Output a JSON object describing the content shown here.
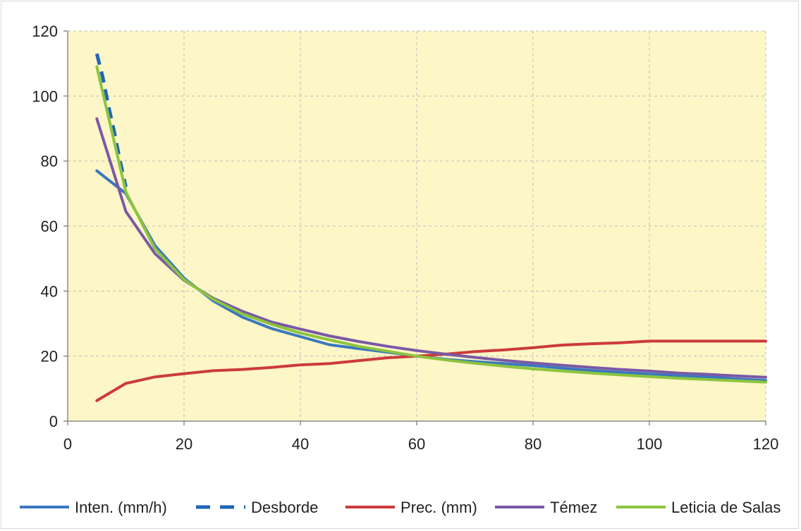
{
  "chart_data": {
    "type": "line",
    "title": "",
    "xlabel": "",
    "ylabel": "",
    "xlim": [
      0,
      120
    ],
    "ylim": [
      0,
      120
    ],
    "xticks": [
      0,
      20,
      40,
      60,
      80,
      100,
      120
    ],
    "yticks": [
      0,
      20,
      40,
      60,
      80,
      100,
      120
    ],
    "grid": true,
    "plot_background": "#fdf6c6",
    "legend_position": "bottom",
    "series": [
      {
        "name": "Inten. (mm/h)",
        "color": "#3a78bf",
        "dashed": false,
        "x": [
          5,
          10,
          15,
          20,
          25,
          30,
          35,
          40,
          45,
          50,
          55,
          60,
          65,
          70,
          75,
          80,
          85,
          90,
          95,
          100,
          105,
          110,
          115,
          120
        ],
        "y": [
          77,
          70,
          54,
          44,
          37,
          32,
          28.5,
          26,
          23.5,
          22.3,
          21.2,
          20,
          19,
          18.3,
          17.7,
          17.1,
          16.3,
          15.6,
          15,
          14.5,
          14,
          13.6,
          13,
          12.5
        ]
      },
      {
        "name": "Desborde",
        "color": "#1f66b5",
        "dashed": true,
        "x": [
          5,
          6,
          7,
          8,
          9,
          10
        ],
        "y": [
          113,
          106,
          97,
          89,
          80,
          72
        ]
      },
      {
        "name": "Prec. (mm)",
        "color": "#cc3b3b",
        "dashed": false,
        "x": [
          5,
          10,
          15,
          20,
          25,
          30,
          35,
          40,
          45,
          50,
          55,
          60,
          65,
          70,
          75,
          80,
          85,
          90,
          95,
          100,
          105,
          110,
          115,
          120
        ],
        "y": [
          6.3,
          11.6,
          13.6,
          14.6,
          15.5,
          15.9,
          16.5,
          17.3,
          17.7,
          18.6,
          19.5,
          20,
          20.6,
          21.4,
          21.9,
          22.6,
          23.4,
          23.8,
          24.1,
          24.6,
          24.6,
          24.6,
          24.6,
          24.6
        ]
      },
      {
        "name": "Témez",
        "color": "#7b58a6",
        "dashed": false,
        "x": [
          5,
          10,
          15,
          20,
          25,
          30,
          35,
          40,
          45,
          50,
          55,
          60,
          65,
          70,
          75,
          80,
          85,
          90,
          95,
          100,
          105,
          110,
          115,
          120
        ],
        "y": [
          93,
          64.5,
          51.5,
          43.3,
          37.8,
          33.8,
          30.5,
          28.3,
          26.2,
          24.5,
          23,
          21.7,
          20.6,
          19.6,
          18.7,
          17.9,
          17.2,
          16.5,
          15.9,
          15.4,
          14.8,
          14.4,
          13.9,
          13.5
        ]
      },
      {
        "name": "Leticia de Salas",
        "color": "#8cc43f",
        "dashed": false,
        "x": [
          5,
          10,
          15,
          20,
          25,
          30,
          35,
          40,
          45,
          50,
          55,
          60,
          65,
          70,
          75,
          80,
          85,
          90,
          95,
          100,
          105,
          110,
          115,
          120
        ],
        "y": [
          109,
          70.5,
          53,
          43.5,
          37.5,
          33,
          29.8,
          27.1,
          25,
          23,
          21.5,
          20,
          18.8,
          17.8,
          16.9,
          16.1,
          15.4,
          14.8,
          14.2,
          13.7,
          13.2,
          12.8,
          12.4,
          12
        ]
      }
    ]
  }
}
